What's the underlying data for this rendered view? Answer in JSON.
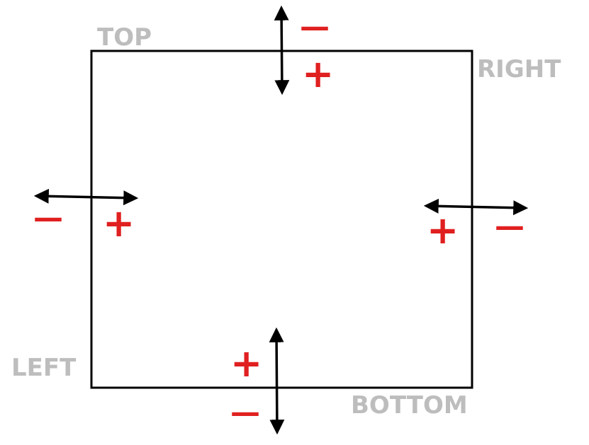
{
  "labels": {
    "top": "TOP",
    "right": "RIGHT",
    "left": "LEFT",
    "bottom": "BOTTOM"
  },
  "signs": {
    "plus": "+",
    "minus": "—"
  },
  "colors": {
    "label": "#bdbdbd",
    "sign": "#e02020",
    "line": "#000000"
  }
}
